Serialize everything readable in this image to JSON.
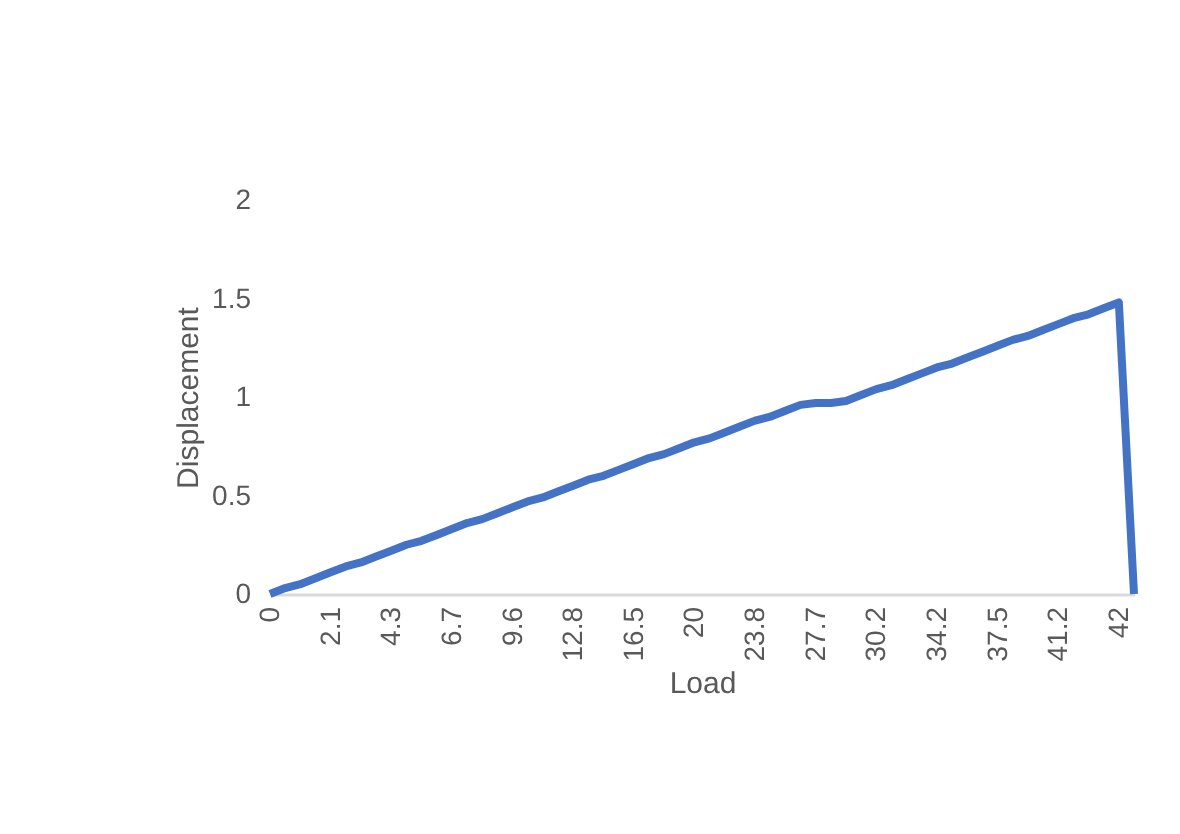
{
  "chart_data": {
    "type": "line",
    "xlabel": "Load",
    "ylabel": "Displacement",
    "categories": [
      "0",
      null,
      null,
      null,
      "2.1",
      null,
      null,
      null,
      "4.3",
      null,
      null,
      null,
      "6.7",
      null,
      null,
      null,
      "9.6",
      null,
      null,
      null,
      "12.8",
      null,
      null,
      null,
      "16.5",
      null,
      null,
      null,
      "20",
      null,
      null,
      null,
      "23.8",
      null,
      null,
      null,
      "27.7",
      null,
      null,
      null,
      "30.2",
      null,
      null,
      null,
      "34.2",
      null,
      null,
      null,
      "37.5",
      null,
      null,
      null,
      "41.2",
      null,
      null,
      null,
      "42",
      null
    ],
    "series": [
      {
        "color": "#4472c4",
        "values": [
          0,
          0.03,
          0.05,
          0.08,
          0.11,
          0.14,
          0.16,
          0.19,
          0.22,
          0.25,
          0.27,
          0.3,
          0.33,
          0.36,
          0.38,
          0.41,
          0.44,
          0.47,
          0.49,
          0.52,
          0.55,
          0.58,
          0.6,
          0.63,
          0.66,
          0.69,
          0.71,
          0.74,
          0.77,
          0.79,
          0.82,
          0.85,
          0.88,
          0.9,
          0.93,
          0.96,
          0.97,
          0.97,
          0.98,
          1.01,
          1.04,
          1.06,
          1.09,
          1.12,
          1.15,
          1.17,
          1.2,
          1.23,
          1.26,
          1.29,
          1.31,
          1.34,
          1.37,
          1.4,
          1.42,
          1.45,
          1.48,
          0
        ]
      }
    ],
    "ylim": [
      0,
      2
    ],
    "yticks": [
      0,
      0.5,
      1,
      1.5,
      2
    ],
    "grid": false,
    "line_style": "solid",
    "marker": "none"
  }
}
